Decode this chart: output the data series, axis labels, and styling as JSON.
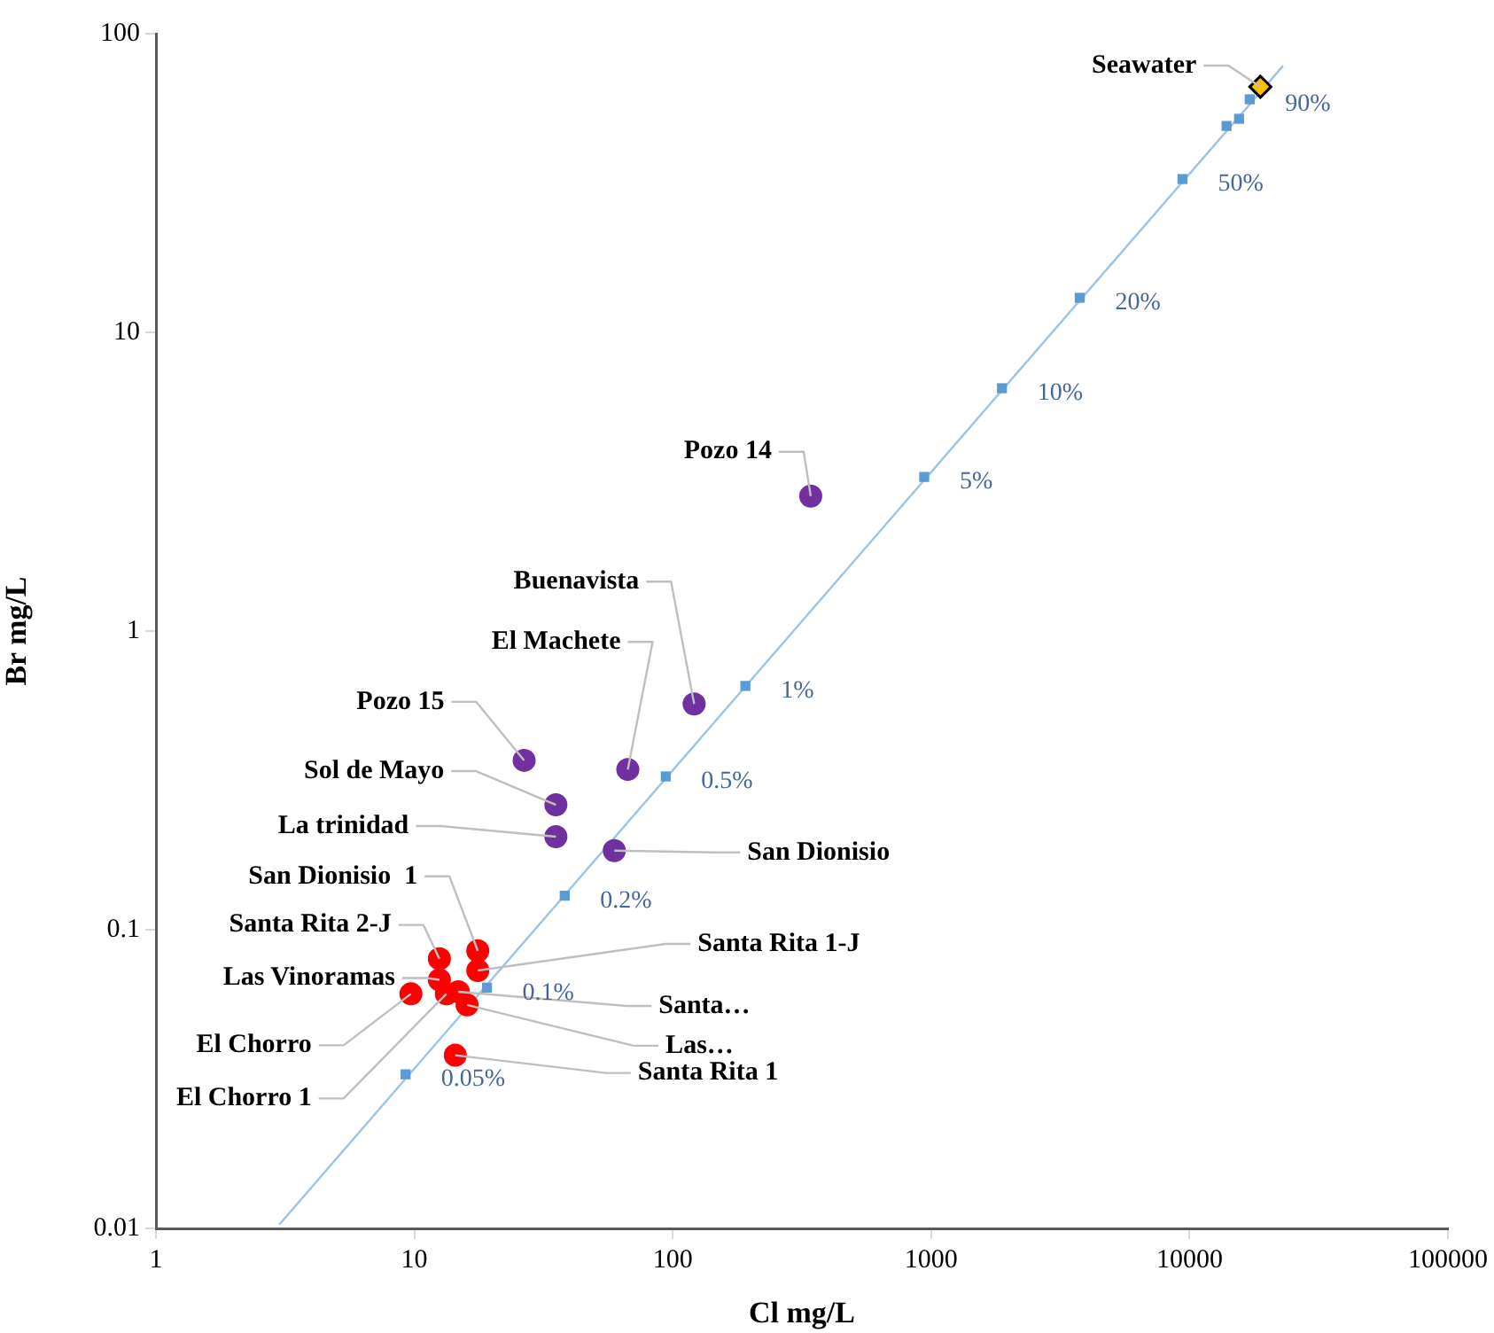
{
  "chart_data": {
    "type": "scatter",
    "xlabel": "Cl mg/L",
    "ylabel": "Br mg/L",
    "log": "xy",
    "grid": false,
    "legend": false,
    "xlim": [
      1,
      100000
    ],
    "xticks": [
      1,
      10,
      100,
      1000,
      10000,
      100000
    ],
    "ylim": [
      0.01,
      100
    ],
    "yticks": [
      0.01,
      0.1,
      1,
      10,
      100
    ],
    "series": [
      {
        "type": "line",
        "color": "#9dc3e6",
        "marker": "none",
        "x": [
          3,
          23000
        ],
        "values": [
          0.0103,
          78
        ]
      },
      {
        "type": "scatter",
        "color": "#5b9bd5",
        "marker": "square",
        "x": [
          9.25,
          19.1,
          38.2,
          94,
          191,
          940,
          1880,
          3760,
          9390,
          13900,
          15550,
          17100
        ],
        "values": [
          0.0328,
          0.064,
          0.13,
          0.326,
          0.655,
          3.28,
          6.5,
          13.05,
          32.6,
          49.1,
          51.9,
          60.3
        ]
      },
      {
        "type": "scatter",
        "color": "#7030a0",
        "marker": "circle",
        "x": [
          342,
          121,
          67,
          26.6,
          35.3,
          35.3,
          59.4
        ],
        "values": [
          2.83,
          0.57,
          0.344,
          0.369,
          0.262,
          0.205,
          0.184
        ]
      },
      {
        "type": "scatter",
        "color": "#ff0000",
        "marker": "circle",
        "x": [
          17.6,
          17.6,
          12.5,
          12.5,
          9.7,
          13.3,
          14.8,
          16.0,
          14.4
        ],
        "values": [
          0.085,
          0.073,
          0.08,
          0.068,
          0.061,
          0.061,
          0.062,
          0.056,
          0.038
        ]
      },
      {
        "type": "scatter",
        "color": "#ffc000",
        "marker": "diamond",
        "x": [
          18800
        ],
        "values": [
          66.4
        ]
      }
    ],
    "annotations": [
      {
        "text": "Seawater",
        "x": 18800,
        "y": 66.4
      },
      {
        "text": "Pozo 14",
        "x": 342,
        "y": 2.83
      },
      {
        "text": "Buenavista",
        "x": 121,
        "y": 0.57
      },
      {
        "text": "El Machete",
        "x": 67,
        "y": 0.344
      },
      {
        "text": "Pozo 15",
        "x": 26.6,
        "y": 0.369
      },
      {
        "text": "Sol de Mayo",
        "x": 35.3,
        "y": 0.262
      },
      {
        "text": "La trinidad",
        "x": 35.3,
        "y": 0.205
      },
      {
        "text": "San Dionisio",
        "x": 59.4,
        "y": 0.184
      },
      {
        "text": "San Dionisio  1",
        "x": 17.6,
        "y": 0.085
      },
      {
        "text": "Santa Rita 1-J",
        "x": 17.6,
        "y": 0.073
      },
      {
        "text": "Santa Rita 2-J",
        "x": 12.5,
        "y": 0.08
      },
      {
        "text": "Las Vinoramas",
        "x": 12.5,
        "y": 0.068
      },
      {
        "text": "Santa…",
        "x": 14.8,
        "y": 0.062
      },
      {
        "text": "Las…",
        "x": 16.0,
        "y": 0.056
      },
      {
        "text": "El Chorro",
        "x": 9.7,
        "y": 0.061
      },
      {
        "text": "El Chorro 1",
        "x": 13.3,
        "y": 0.061
      },
      {
        "text": "Santa Rita 1",
        "x": 14.4,
        "y": 0.038
      },
      {
        "text": "0.05%",
        "x": 9.25,
        "y": 0.0328
      },
      {
        "text": "0.1%",
        "x": 19.1,
        "y": 0.064
      },
      {
        "text": "0.2%",
        "x": 38.2,
        "y": 0.13
      },
      {
        "text": "0.5%",
        "x": 94,
        "y": 0.326
      },
      {
        "text": "1%",
        "x": 191,
        "y": 0.655
      },
      {
        "text": "5%",
        "x": 940,
        "y": 3.28
      },
      {
        "text": "10%",
        "x": 1880,
        "y": 6.5
      },
      {
        "text": "20%",
        "x": 3760,
        "y": 13.05
      },
      {
        "text": "50%",
        "x": 9390,
        "y": 32.6
      },
      {
        "text": "90%",
        "x": 17100,
        "y": 60.3
      }
    ]
  }
}
